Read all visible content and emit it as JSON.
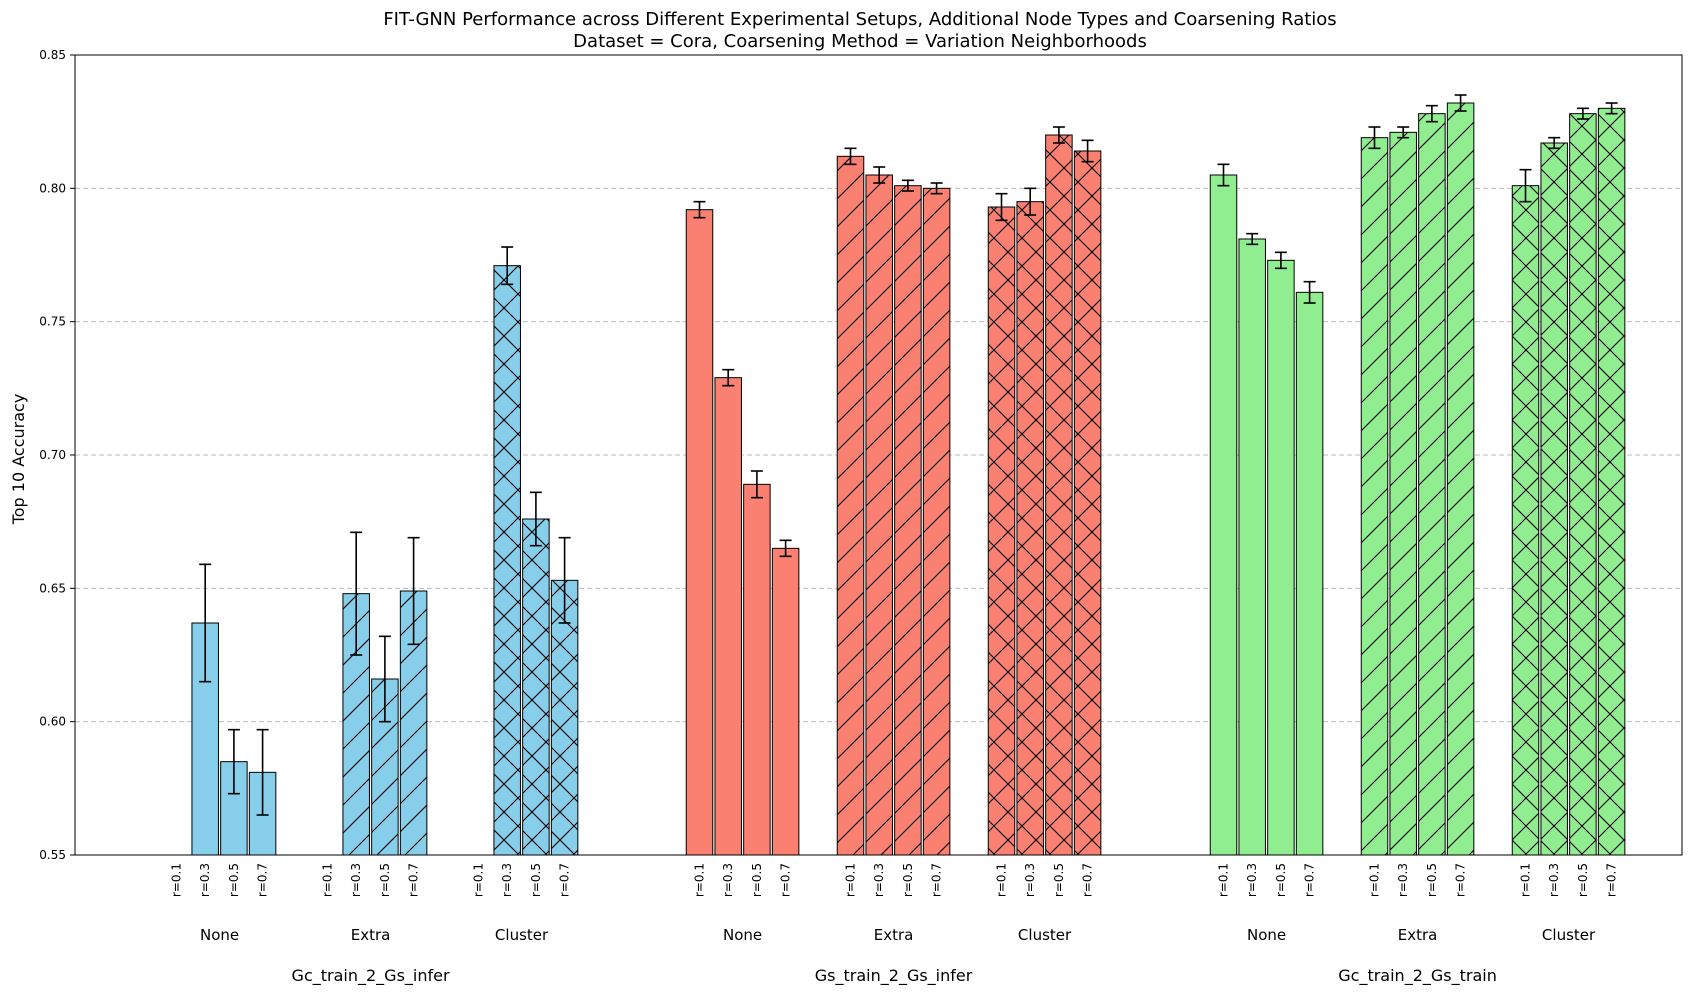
{
  "chart_data": {
    "type": "bar",
    "title": "FIT-GNN Performance across Different Experimental Setups, Additional Node Types and Coarsening Ratios",
    "subtitle": "Dataset = Cora, Coarsening Method = Variation Neighborhoods",
    "ylabel": "Top 10 Accuracy",
    "xlabel": "",
    "ylim": [
      0.55,
      0.85
    ],
    "yticks": [
      "0.55",
      "0.60",
      "0.65",
      "0.70",
      "0.75",
      "0.80",
      "0.85"
    ],
    "grid": "horizontal dashed",
    "ratios": [
      "r=0.1",
      "r=0.3",
      "r=0.5",
      "r=0.7"
    ],
    "node_types": [
      "None",
      "Extra",
      "Cluster"
    ],
    "setups": [
      {
        "name": "Gc_train_2_Gs_infer",
        "color": "#87CEEB",
        "groups": [
          {
            "node_type": "None",
            "values": [
              null,
              0.637,
              0.585,
              0.581
            ],
            "errors": [
              null,
              0.022,
              0.012,
              0.016
            ]
          },
          {
            "node_type": "Extra",
            "values": [
              null,
              0.648,
              0.616,
              0.649
            ],
            "errors": [
              null,
              0.023,
              0.016,
              0.02
            ]
          },
          {
            "node_type": "Cluster",
            "values": [
              null,
              0.771,
              0.676,
              0.653
            ],
            "errors": [
              null,
              0.007,
              0.01,
              0.016
            ]
          }
        ]
      },
      {
        "name": "Gs_train_2_Gs_infer",
        "color": "#FA8072",
        "groups": [
          {
            "node_type": "None",
            "values": [
              0.792,
              0.729,
              0.689,
              0.665
            ],
            "errors": [
              0.003,
              0.003,
              0.005,
              0.003
            ]
          },
          {
            "node_type": "Extra",
            "values": [
              0.812,
              0.805,
              0.801,
              0.8
            ],
            "errors": [
              0.003,
              0.003,
              0.002,
              0.002
            ]
          },
          {
            "node_type": "Cluster",
            "values": [
              0.793,
              0.795,
              0.82,
              0.814
            ],
            "errors": [
              0.005,
              0.005,
              0.003,
              0.004
            ]
          }
        ]
      },
      {
        "name": "Gc_train_2_Gs_train",
        "color": "#90EE90",
        "groups": [
          {
            "node_type": "None",
            "values": [
              0.805,
              0.781,
              0.773,
              0.761
            ],
            "errors": [
              0.004,
              0.002,
              0.003,
              0.004
            ]
          },
          {
            "node_type": "Extra",
            "values": [
              0.819,
              0.821,
              0.828,
              0.832
            ],
            "errors": [
              0.004,
              0.002,
              0.003,
              0.003
            ]
          },
          {
            "node_type": "Cluster",
            "values": [
              0.801,
              0.817,
              0.828,
              0.83
            ],
            "errors": [
              0.006,
              0.002,
              0.002,
              0.002
            ]
          }
        ]
      }
    ]
  }
}
